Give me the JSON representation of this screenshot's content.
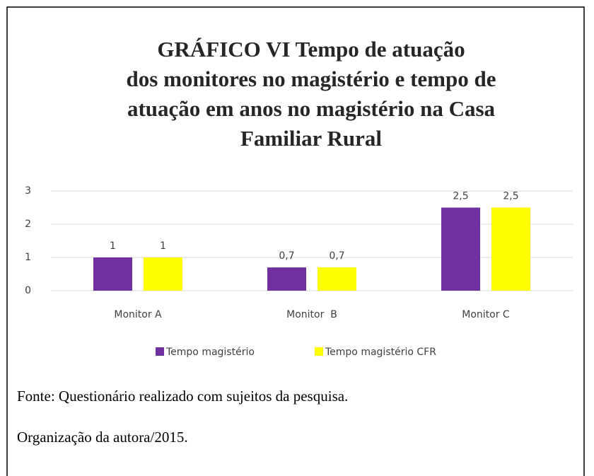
{
  "chart_data": {
    "type": "bar",
    "title": [
      "GRÁFICO VI        Tempo de atuação",
      "dos monitores no magistério e tempo de",
      "atuação em anos no magistério na Casa",
      "Familiar Rural"
    ],
    "categories": [
      "Monitor A",
      "Monitor  B",
      "Monitor C"
    ],
    "series": [
      {
        "name": "Tempo magistério",
        "color": "#7030a0",
        "values": [
          1,
          0.7,
          2.5
        ],
        "value_labels": [
          "1",
          "0,7",
          "2,5"
        ]
      },
      {
        "name": "Tempo magistério CFR",
        "color": "#ffff00",
        "values": [
          1,
          0.7,
          2.5
        ],
        "value_labels": [
          "1",
          "0,7",
          "2,5"
        ]
      }
    ],
    "ylim": [
      0,
      3
    ],
    "yticks": [
      0,
      1,
      2,
      3
    ],
    "grid": true,
    "legend": "bottom"
  },
  "notes": [
    "Fonte: Questionário realizado com sujeitos da pesquisa.",
    "Organização da autora/2015."
  ]
}
